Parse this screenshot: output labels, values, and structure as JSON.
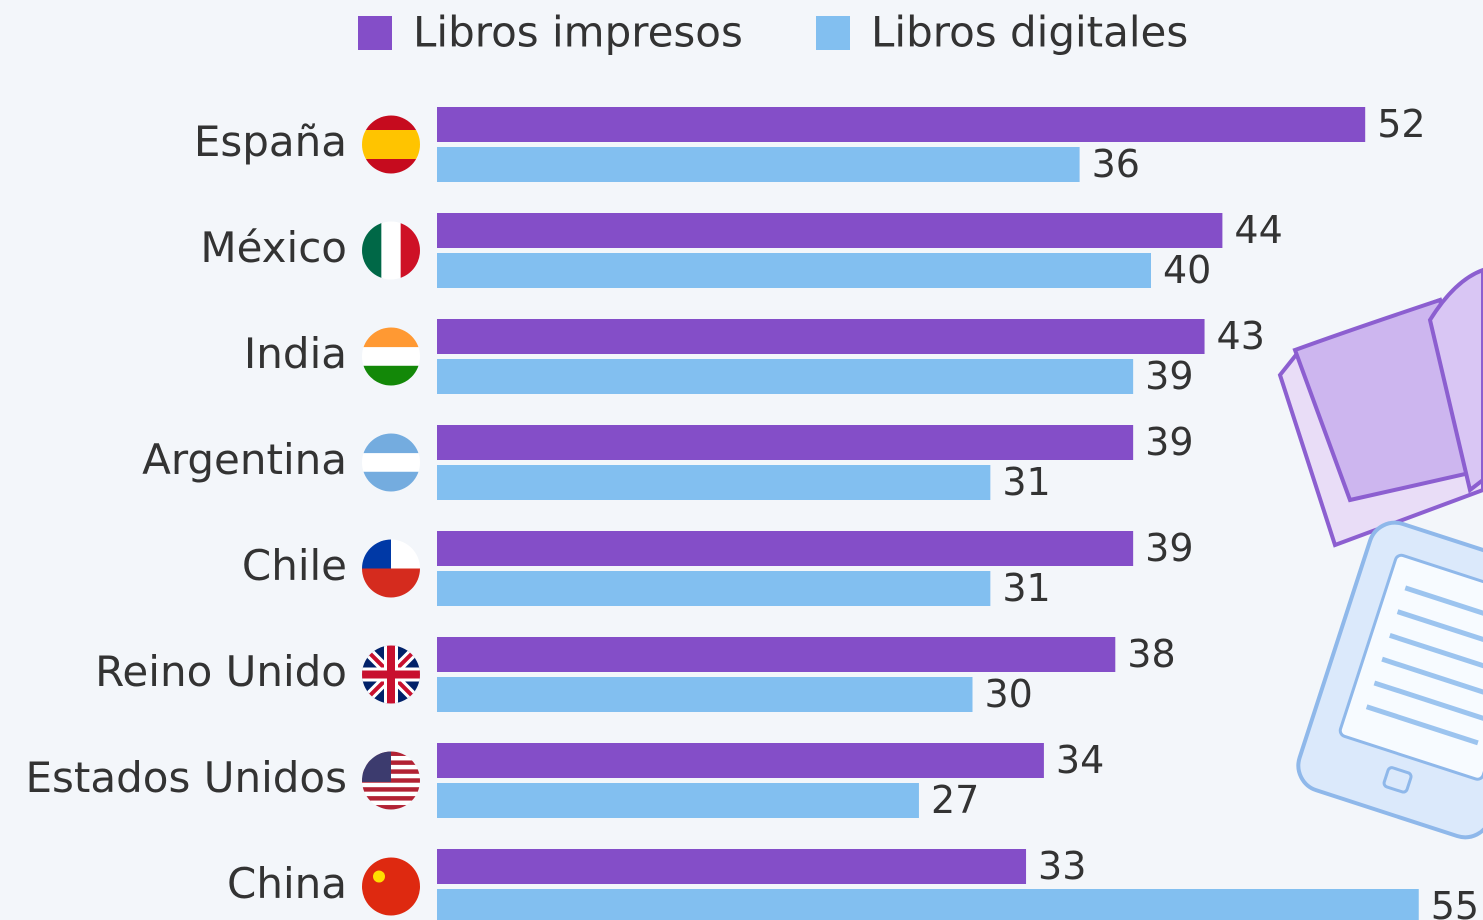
{
  "chart_data": {
    "type": "barh",
    "categories": [
      "España",
      "México",
      "India",
      "Argentina",
      "Chile",
      "Reino Unido",
      "Estados Unidos",
      "China"
    ],
    "series": [
      {
        "name": "Libros impresos",
        "color": "#844ec8",
        "values": [
          52,
          44,
          43,
          39,
          39,
          38,
          34,
          33
        ]
      },
      {
        "name": "Libros digitales",
        "color": "#82bff0",
        "values": [
          36,
          40,
          39,
          31,
          31,
          30,
          27,
          55
        ]
      }
    ],
    "xlim": [
      0,
      60
    ],
    "legend": "top"
  }
}
